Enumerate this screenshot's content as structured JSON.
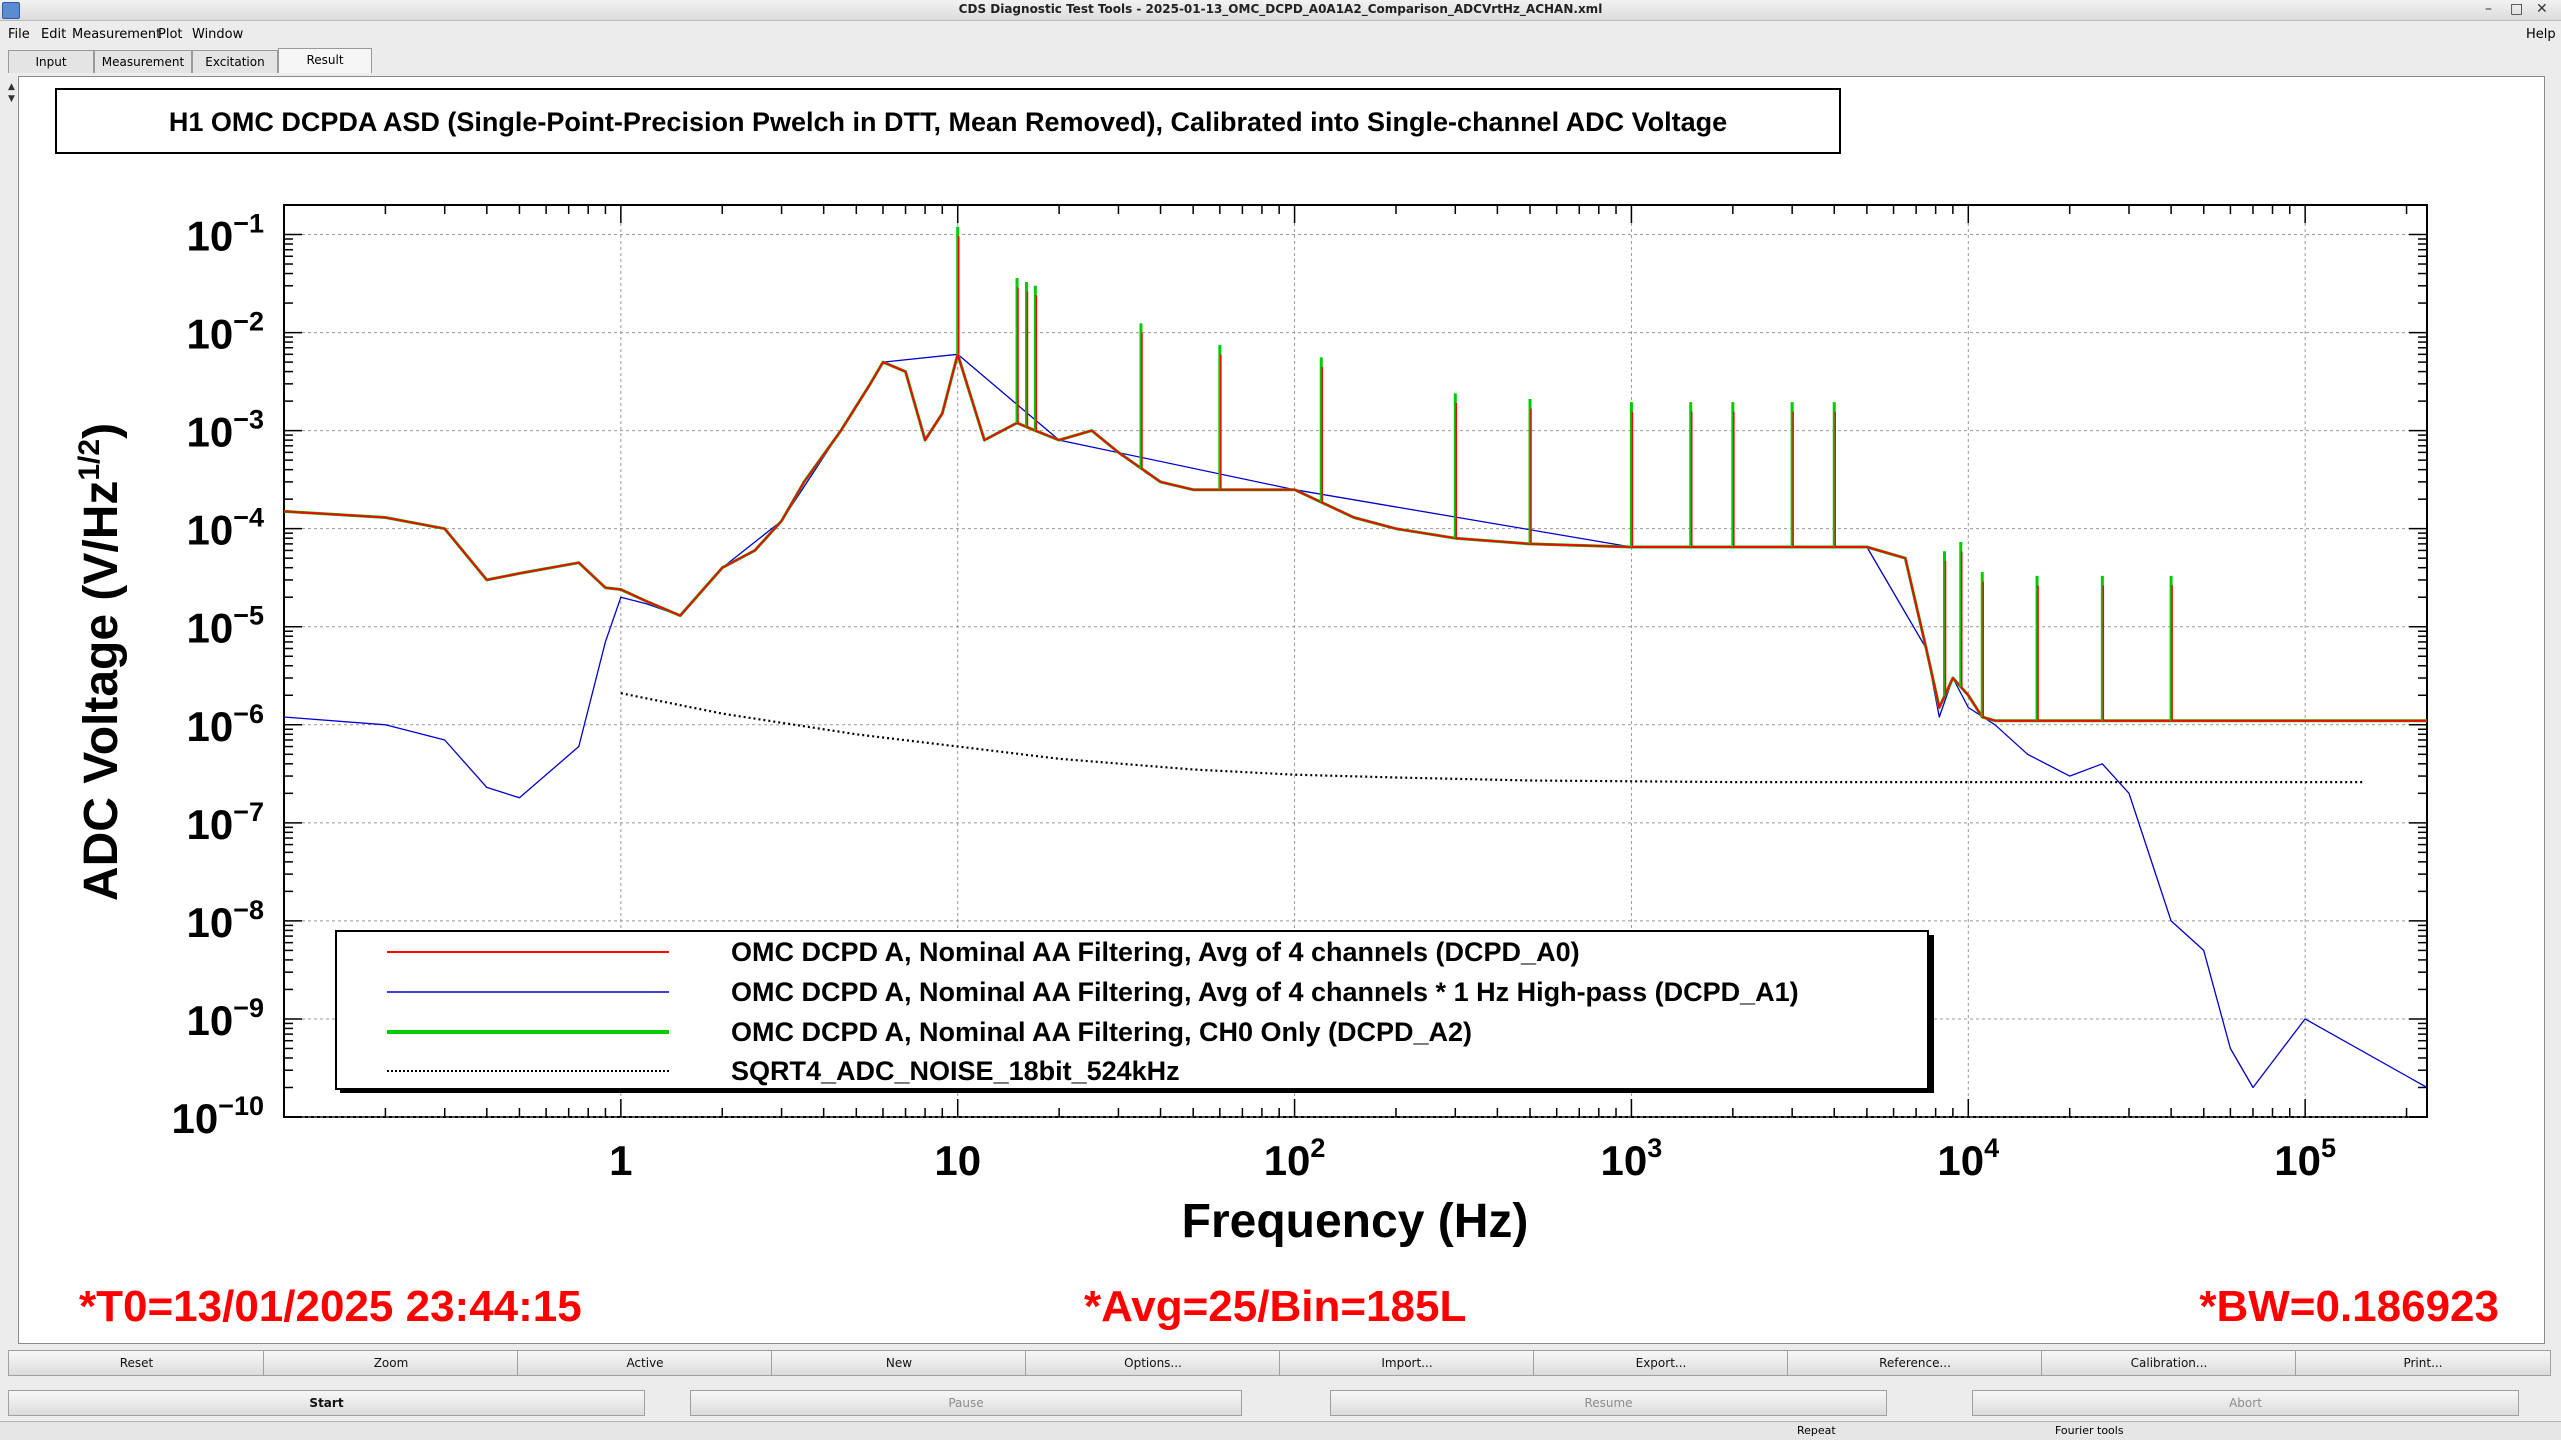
{
  "window": {
    "title": "CDS Diagnostic Test Tools - 2025-01-13_OMC_DCPD_A0A1A2_Comparison_ADCVrtHz_ACHAN.xml",
    "menu": [
      "File",
      "Edit",
      "Measurement",
      "Plot",
      "Window"
    ],
    "help": "Help"
  },
  "tabs": [
    "Input",
    "Measurement",
    "Excitation",
    "Result"
  ],
  "active_tab": "Result",
  "plot": {
    "title": "H1 OMC DCPDA ASD (Single-Point-Precision Pwelch in DTT, Mean Removed), Calibrated into Single-channel ADC Voltage",
    "ylabel_main": "ADC Voltage (V/Hz",
    "ylabel_sup": "1/2",
    "ylabel_end": ")",
    "xlabel": "Frequency (Hz)",
    "x_ticklabels": [
      "1",
      "10",
      "10",
      "10",
      "10",
      "10"
    ],
    "x_tick_sups": [
      "",
      "",
      "2",
      "3",
      "4",
      "5"
    ],
    "y_tick_base": "10",
    "y_tick_sups": [
      "−1",
      "−2",
      "−3",
      "−4",
      "−5",
      "−6",
      "−7",
      "−8",
      "−9",
      "−10"
    ],
    "legend": [
      "OMC DCPD A, Nominal AA Filtering, Avg of 4 channels (DCPD_A0)",
      "OMC DCPD A, Nominal AA Filtering, Avg of 4 channels * 1 Hz High-pass (DCPD_A1)",
      "OMC DCPD A, Nominal AA Filtering, CH0 Only (DCPD_A2)",
      "SQRT4_ADC_NOISE_18bit_524kHz"
    ],
    "footer": {
      "t0": "*T0=13/01/2025 23:44:15",
      "avg": "*Avg=25/Bin=185L",
      "bw": "*BW=0.186923"
    }
  },
  "chart_data": {
    "type": "line",
    "title": "H1 OMC DCPDA ASD (Single-Point-Precision Pwelch in DTT, Mean Removed), Calibrated into Single-channel ADC Voltage",
    "xlabel": "Frequency (Hz)",
    "ylabel": "ADC Voltage (V/Hz^1/2)",
    "xscale": "log",
    "yscale": "log",
    "xlim": [
      0.1,
      230000
    ],
    "ylim": [
      1e-10,
      0.2
    ],
    "grid": true,
    "legend_position": "bottom-left",
    "series": [
      {
        "name": "OMC DCPD A, Nominal AA Filtering, Avg of 4 channels (DCPD_A0)",
        "color": "#ff0000",
        "x": [
          0.1,
          0.2,
          0.3,
          0.4,
          0.5,
          0.75,
          0.9,
          1.0,
          1.2,
          1.5,
          2,
          2.5,
          3,
          3.5,
          4.5,
          5.5,
          6,
          7,
          8,
          9,
          10,
          12,
          15,
          17,
          20,
          25,
          30,
          40,
          50,
          70,
          100,
          150,
          200,
          300,
          500,
          1000,
          2000,
          3000,
          5000,
          6500,
          7500,
          8200,
          9000,
          10000,
          11000,
          12000,
          15000,
          20000,
          30000,
          50000,
          100000,
          230000
        ],
        "y": [
          0.00015,
          0.00013,
          0.0001,
          3e-05,
          3.5e-05,
          4.5e-05,
          2.5e-05,
          2.4e-05,
          1.8e-05,
          1.3e-05,
          4e-05,
          6e-05,
          0.00012,
          0.0003,
          0.001,
          0.003,
          0.005,
          0.004,
          0.0008,
          0.0015,
          0.006,
          0.0008,
          0.0012,
          0.001,
          0.0008,
          0.001,
          0.0006,
          0.0003,
          0.00025,
          0.00025,
          0.00025,
          0.00013,
          0.0001,
          8e-05,
          7e-05,
          6.5e-05,
          6.5e-05,
          6.5e-05,
          6.5e-05,
          5e-05,
          6e-06,
          1.5e-06,
          3e-06,
          2e-06,
          1.2e-06,
          1.1e-06,
          1.1e-06,
          1.1e-06,
          1.1e-06,
          1.1e-06,
          1.1e-06,
          1.1e-06
        ]
      },
      {
        "name": "OMC DCPD A, Nominal AA Filtering, Avg of 4 channels * 1 Hz High-pass (DCPD_A1)",
        "color": "#0000cc",
        "x": [
          0.1,
          0.2,
          0.3,
          0.4,
          0.5,
          0.75,
          0.9,
          1.0,
          1.2,
          1.5,
          2,
          3,
          4.5,
          6,
          10,
          20,
          100,
          1000,
          5000,
          7500,
          8200,
          9000,
          10000,
          12000,
          15000,
          20000,
          25000,
          30000,
          40000,
          50000,
          60000,
          70000,
          100000,
          230000
        ],
        "y": [
          1.2e-06,
          1e-06,
          7e-07,
          2.3e-07,
          1.8e-07,
          6e-07,
          7e-06,
          2e-05,
          1.7e-05,
          1.3e-05,
          4e-05,
          0.00012,
          0.001,
          0.005,
          0.006,
          0.0008,
          0.00025,
          6.5e-05,
          6.5e-05,
          6e-06,
          1.2e-06,
          3e-06,
          1.5e-06,
          1e-06,
          5e-07,
          3e-07,
          4e-07,
          2e-07,
          1e-08,
          5e-09,
          5e-10,
          2e-10,
          1e-09,
          2e-10
        ]
      },
      {
        "name": "OMC DCPD A, Nominal AA Filtering, CH0 Only (DCPD_A2)",
        "color": "#00cc00",
        "x": [
          0.1,
          0.2,
          0.3,
          0.4,
          0.5,
          0.75,
          0.9,
          1.0,
          1.2,
          1.5,
          2,
          2.5,
          3,
          3.5,
          4.5,
          5.5,
          6,
          7,
          8,
          9,
          10,
          12,
          15,
          17,
          20,
          25,
          30,
          40,
          50,
          70,
          100,
          150,
          200,
          300,
          500,
          1000,
          2000,
          3000,
          5000,
          6500,
          7500,
          8200,
          9000,
          10000,
          11000,
          12000,
          15000,
          20000,
          30000,
          50000,
          100000,
          230000
        ],
        "y": [
          0.00015,
          0.00013,
          0.0001,
          3e-05,
          3.5e-05,
          4.5e-05,
          2.5e-05,
          2.4e-05,
          1.8e-05,
          1.3e-05,
          4e-05,
          6e-05,
          0.00012,
          0.0003,
          0.001,
          0.003,
          0.005,
          0.004,
          0.0008,
          0.0015,
          0.006,
          0.0008,
          0.0012,
          0.001,
          0.0008,
          0.001,
          0.0006,
          0.0003,
          0.00025,
          0.00025,
          0.00025,
          0.00013,
          0.0001,
          8e-05,
          7e-05,
          6.5e-05,
          6.5e-05,
          6.5e-05,
          6.5e-05,
          5e-05,
          6e-06,
          1.5e-06,
          3e-06,
          2e-06,
          1.2e-06,
          1.1e-06,
          1.1e-06,
          1.1e-06,
          1.1e-06,
          1.1e-06,
          1.1e-06,
          1.1e-06
        ]
      },
      {
        "name": "SQRT4_ADC_NOISE_18bit_524kHz",
        "color": "#000000",
        "x": [
          1,
          2,
          5,
          10,
          20,
          50,
          100,
          200,
          500,
          1000,
          2000,
          5000,
          10000,
          20000,
          50000,
          100000,
          150000
        ],
        "y": [
          2.1e-06,
          1.3e-06,
          8e-07,
          6e-07,
          4.5e-07,
          3.5e-07,
          3.1e-07,
          2.9e-07,
          2.7e-07,
          2.65e-07,
          2.6e-07,
          2.6e-07,
          2.6e-07,
          2.6e-07,
          2.6e-07,
          2.6e-07,
          2.6e-07
        ]
      }
    ],
    "peaks_hz": [
      10,
      15,
      16,
      17,
      35,
      60,
      120,
      300,
      500,
      1000,
      1500,
      2000,
      3000,
      4000,
      8500,
      9500,
      11000,
      16000,
      25000,
      40000
    ]
  },
  "buttons_row1": [
    "Reset",
    "Zoom",
    "Active",
    "New",
    "Options...",
    "Import...",
    "Export...",
    "Reference...",
    "Calibration...",
    "Print..."
  ],
  "buttons_row2": [
    "Start",
    "Pause",
    "Resume",
    "Abort"
  ],
  "status": {
    "repeat": "Repeat",
    "fourier": "Fourier tools"
  }
}
